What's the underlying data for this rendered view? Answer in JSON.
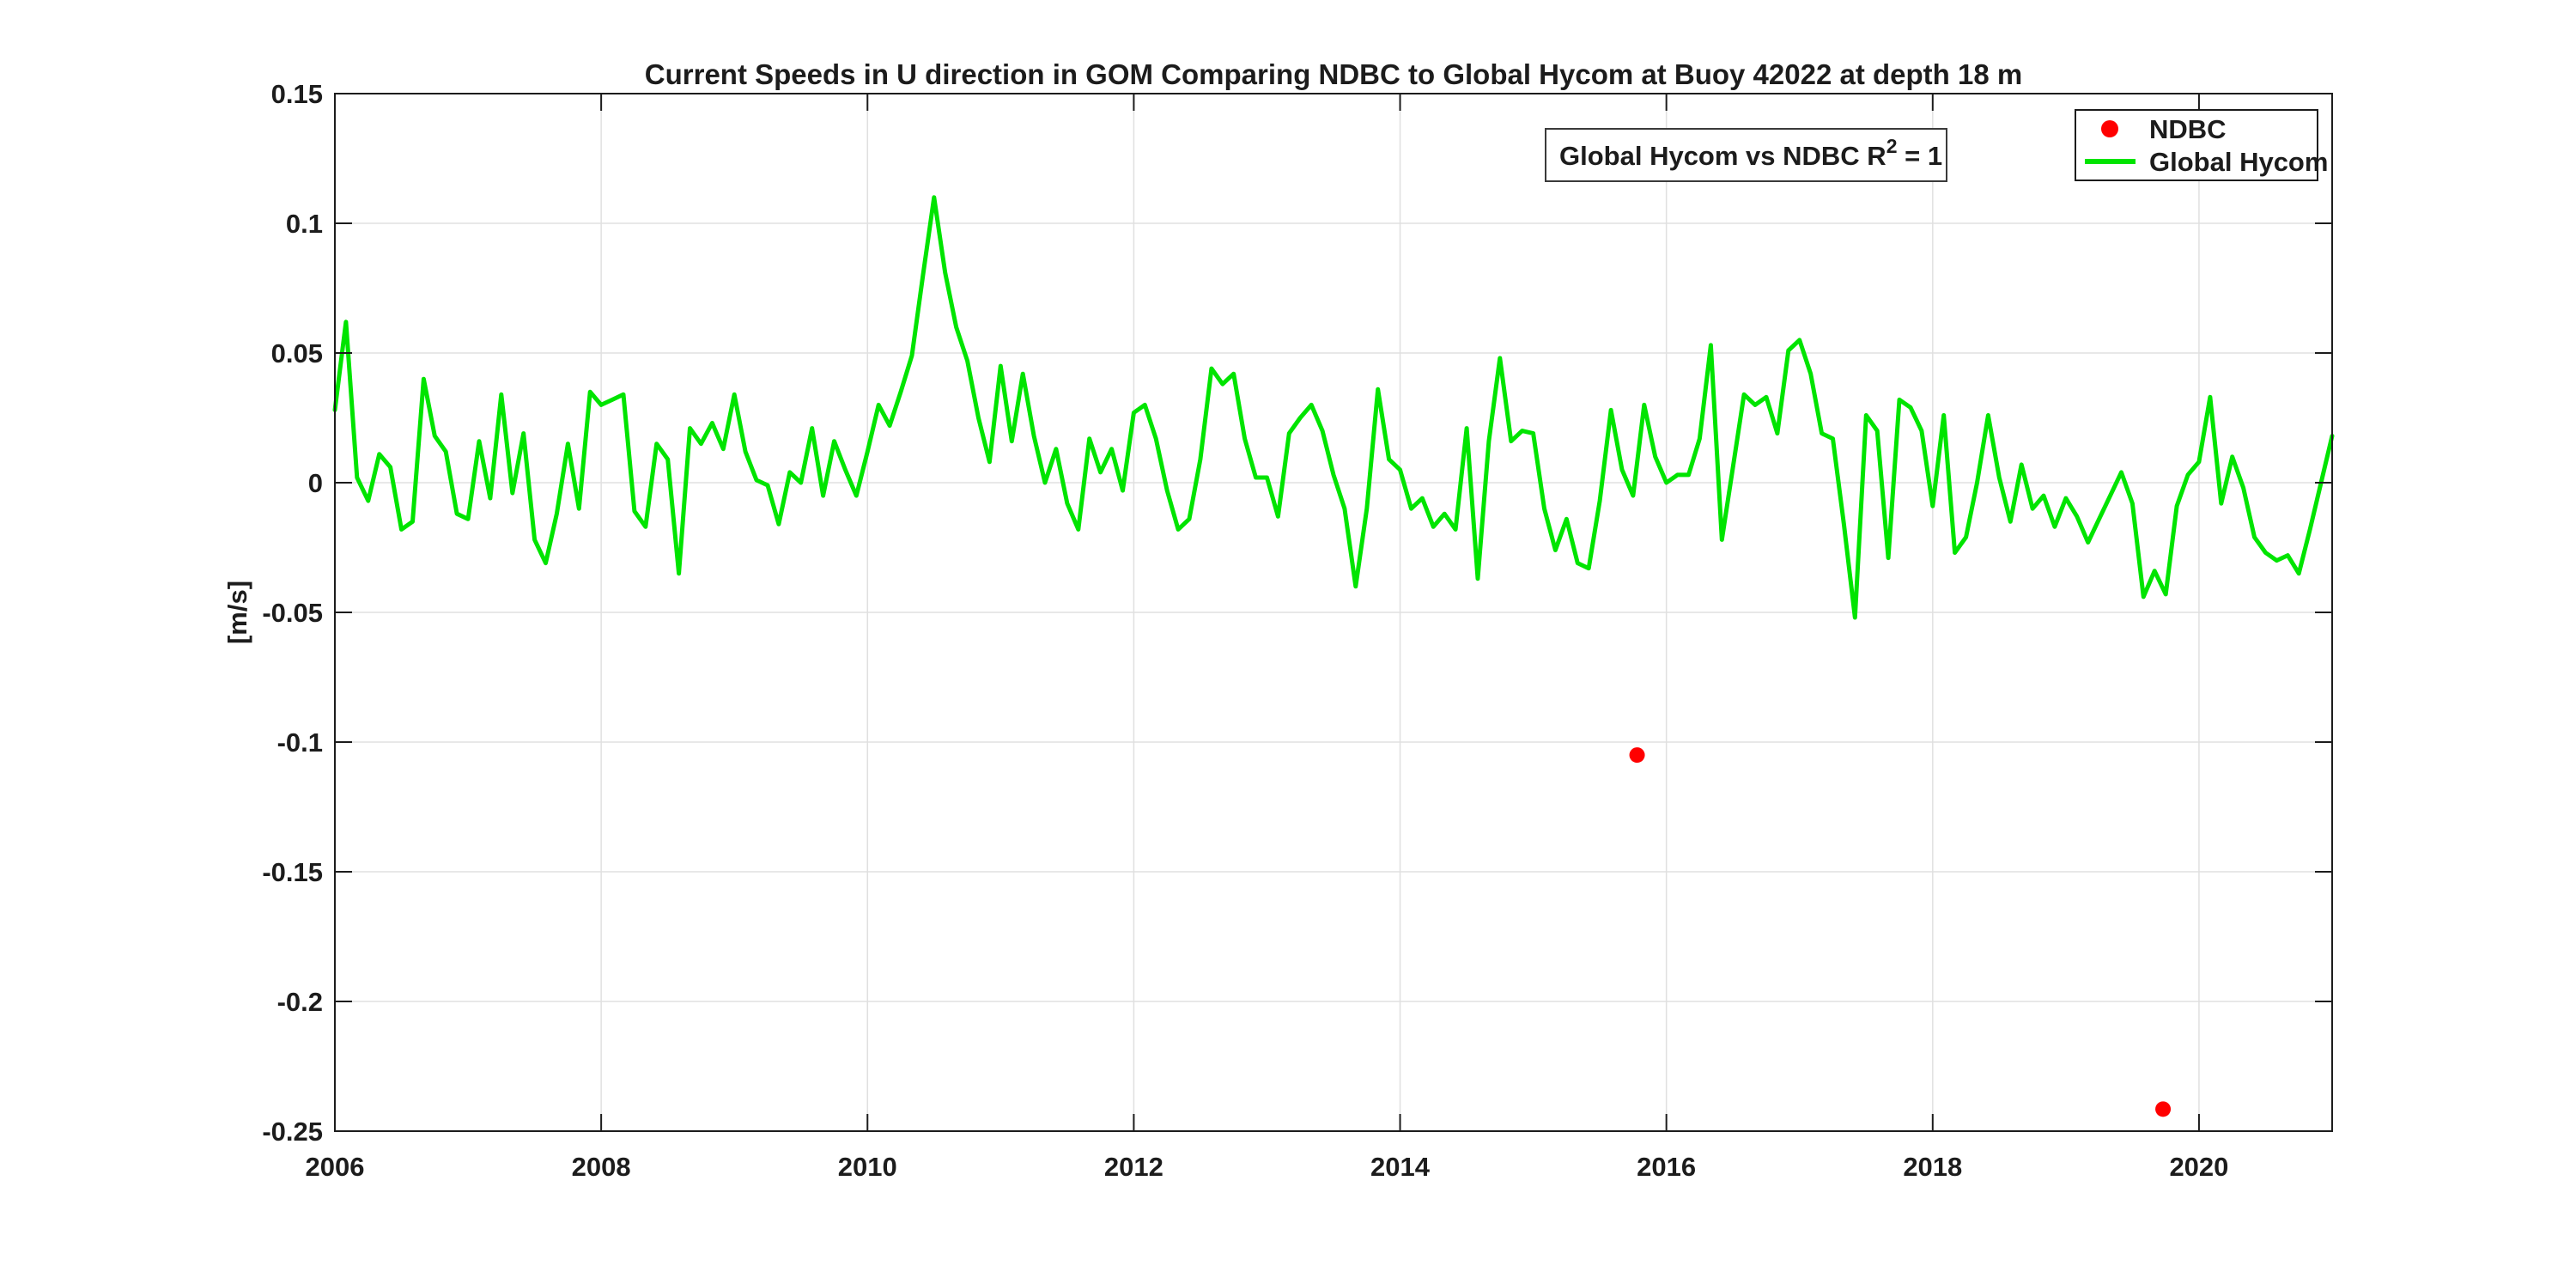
{
  "figure": {
    "title": "Current Speeds in U direction in GOM Comparing NDBC to Global Hycom at Buoy  42022  at depth  18 m"
  },
  "annotation": {
    "text_before": "Global Hycom vs NDBC R",
    "superscript": "2",
    "text_after": " = 1"
  },
  "legend": {
    "items": [
      {
        "label": "NDBC",
        "marker": "dot-icon",
        "color": "#ff0000"
      },
      {
        "label": "Global Hycom",
        "marker": "line-icon",
        "color": "#00e400"
      }
    ]
  },
  "chart_data": {
    "type": "line",
    "title": "Current Speeds in U direction in GOM Comparing NDBC to Global Hycom at Buoy  42022  at depth  18 m",
    "xlabel": "",
    "ylabel": "[m/s]",
    "xlim": [
      2006,
      2021
    ],
    "ylim": [
      -0.25,
      0.15
    ],
    "grid": true,
    "legend_position": "top-right",
    "x_ticks": [
      {
        "v": 2006,
        "label": "2006"
      },
      {
        "v": 2008,
        "label": "2008"
      },
      {
        "v": 2010,
        "label": "2010"
      },
      {
        "v": 2012,
        "label": "2012"
      },
      {
        "v": 2014,
        "label": "2014"
      },
      {
        "v": 2016,
        "label": "2016"
      },
      {
        "v": 2018,
        "label": "2018"
      },
      {
        "v": 2020,
        "label": "2020"
      }
    ],
    "y_ticks": [
      {
        "v": 0.15,
        "label": "0.15"
      },
      {
        "v": 0.1,
        "label": "0.1"
      },
      {
        "v": 0.05,
        "label": "0.05"
      },
      {
        "v": 0,
        "label": "0"
      },
      {
        "v": -0.05,
        "label": "-0.05"
      },
      {
        "v": -0.1,
        "label": "-0.1"
      },
      {
        "v": -0.15,
        "label": "-0.15"
      },
      {
        "v": -0.2,
        "label": "-0.2"
      },
      {
        "v": -0.25,
        "label": "-0.25"
      }
    ],
    "series": [
      {
        "name": "Global Hycom",
        "type": "line",
        "color": "#00e400",
        "x_start": 2006.0,
        "x_step_years": 0.0833333,
        "values": [
          0.028,
          0.062,
          0.002,
          -0.007,
          0.011,
          0.006,
          -0.018,
          -0.015,
          0.04,
          0.018,
          0.012,
          -0.012,
          -0.014,
          0.016,
          -0.006,
          0.034,
          -0.004,
          0.019,
          -0.022,
          -0.031,
          -0.012,
          0.015,
          -0.01,
          0.035,
          0.03,
          0.032,
          0.034,
          -0.011,
          -0.017,
          0.015,
          0.009,
          -0.035,
          0.021,
          0.015,
          0.023,
          0.013,
          0.034,
          0.012,
          0.001,
          -0.001,
          -0.016,
          0.004,
          0.0,
          0.021,
          -0.005,
          0.016,
          0.005,
          -0.005,
          0.012,
          0.03,
          0.022,
          0.035,
          0.049,
          0.08,
          0.11,
          0.081,
          0.06,
          0.047,
          0.025,
          0.008,
          0.045,
          0.016,
          0.042,
          0.018,
          0.0,
          0.013,
          -0.008,
          -0.018,
          0.017,
          0.004,
          0.013,
          -0.003,
          0.027,
          0.03,
          0.017,
          -0.003,
          -0.018,
          -0.014,
          0.009,
          0.044,
          0.038,
          0.042,
          0.017,
          0.002,
          0.002,
          -0.013,
          0.019,
          0.025,
          0.03,
          0.02,
          0.003,
          -0.01,
          -0.04,
          -0.01,
          0.036,
          0.009,
          0.005,
          -0.01,
          -0.006,
          -0.017,
          -0.012,
          -0.018,
          0.021,
          -0.037,
          0.016,
          0.048,
          0.016,
          0.02,
          0.019,
          -0.01,
          -0.026,
          -0.014,
          -0.031,
          -0.033,
          -0.007,
          0.028,
          0.005,
          -0.005,
          0.03,
          0.01,
          0.0,
          0.003,
          0.003,
          0.017,
          0.053,
          -0.022,
          0.006,
          0.034,
          0.03,
          0.033,
          0.019,
          0.051,
          0.055,
          0.042,
          0.019,
          0.017,
          -0.016,
          -0.052,
          0.026,
          0.02,
          -0.029,
          0.032,
          0.029,
          0.02,
          -0.009,
          0.026,
          -0.027,
          -0.021,
          0.0,
          0.026,
          0.002,
          -0.015,
          0.007,
          -0.01,
          -0.005,
          -0.017,
          -0.006,
          -0.013,
          -0.023,
          -0.014,
          -0.005,
          0.004,
          -0.008,
          -0.044,
          -0.034,
          -0.043,
          -0.009,
          0.003,
          0.008,
          0.033,
          -0.008,
          0.01,
          -0.002,
          -0.021,
          -0.027,
          -0.03,
          -0.028,
          -0.035,
          -0.018,
          0.0,
          0.018
        ]
      },
      {
        "name": "NDBC",
        "type": "scatter",
        "color": "#ff0000",
        "points": [
          {
            "x": 2015.78,
            "y": -0.105
          },
          {
            "x": 2019.73,
            "y": -0.2415
          }
        ]
      }
    ]
  },
  "colors": {
    "line_green": "#00e400",
    "marker_red": "#ff0000",
    "grid": "#e0e0e0",
    "axis": "#1c1c1c",
    "background": "#ffffff"
  }
}
